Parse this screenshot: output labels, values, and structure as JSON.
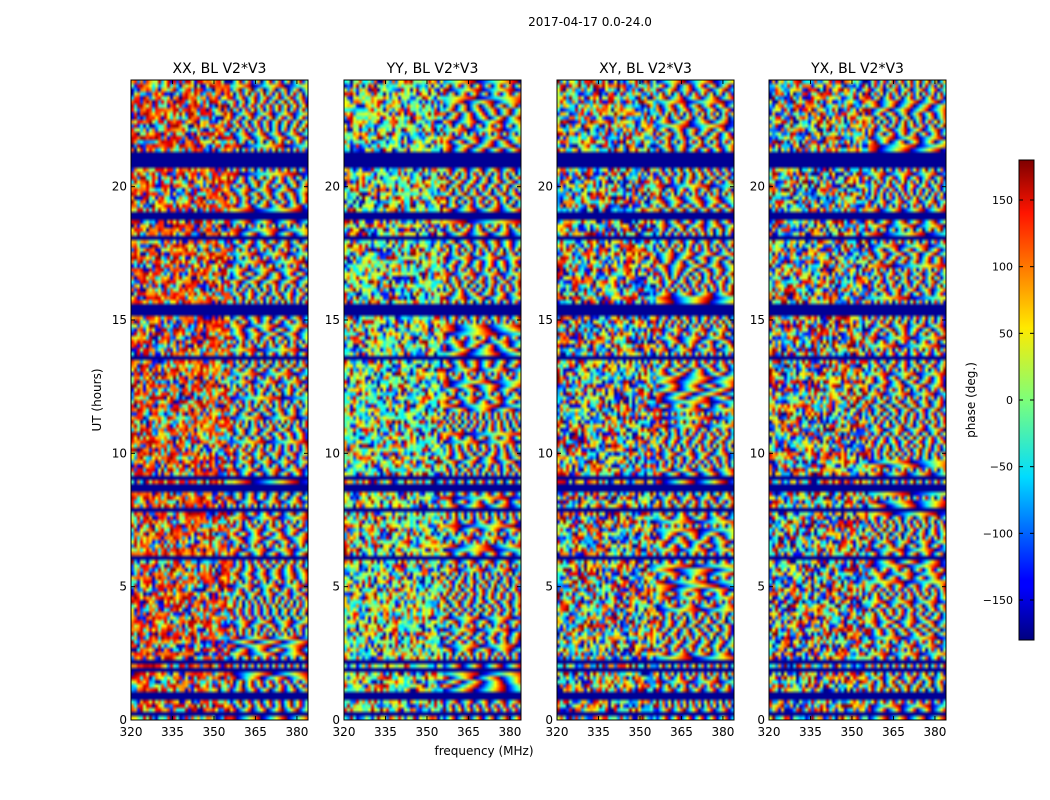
{
  "chart_data": {
    "type": "heatmap",
    "suptitle": "2017-04-17 0.0-24.0",
    "xlabel": "frequency (MHz)",
    "ylabel": "UT (hours)",
    "xlim": [
      320,
      384
    ],
    "ylim": [
      0,
      24
    ],
    "xticks": [
      320,
      335,
      350,
      365,
      380
    ],
    "yticks": [
      0,
      5,
      10,
      15,
      20
    ],
    "panels": [
      {
        "title": "XX, BL V2*V3",
        "bias": "high"
      },
      {
        "title": "YY, BL V2*V3",
        "bias": "mixed"
      },
      {
        "title": "XY, BL V2*V3",
        "bias": "none"
      },
      {
        "title": "YX, BL V2*V3",
        "bias": "none"
      }
    ],
    "flagged_rows_ut": [
      0.2,
      0.9,
      1.9,
      2.2,
      6.1,
      7.9,
      8.7,
      9.1,
      13.6,
      15.2,
      15.35,
      15.55,
      18.1,
      18.9,
      20.8,
      21.0,
      21.2
    ],
    "colorbar": {
      "label": "phase (deg.)",
      "range": [
        -180,
        180
      ],
      "ticks": [
        -150,
        -100,
        -50,
        0,
        50,
        100,
        150
      ],
      "tick_labels": [
        "−150",
        "−100",
        "−50",
        "0",
        "50",
        "100",
        "150"
      ],
      "colormap": "jet"
    }
  }
}
